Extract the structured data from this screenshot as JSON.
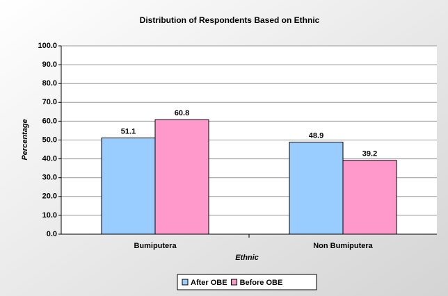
{
  "chart_data": {
    "type": "bar",
    "title": "Distribution of Respondents Based on Ethnic",
    "x_label": "Ethnic",
    "y_label": "Percentage",
    "categories": [
      "Bumiputera",
      "Non Bumiputera"
    ],
    "series": [
      {
        "name": "After OBE",
        "color": "#99ccff",
        "values": [
          51.1,
          48.9
        ]
      },
      {
        "name": "Before OBE",
        "color": "#ff99cc",
        "values": [
          60.8,
          39.2
        ]
      }
    ],
    "ylim": [
      0,
      100
    ],
    "yticks": [
      {
        "value": 0,
        "label": "0.0"
      },
      {
        "value": 10,
        "label": "10.0"
      },
      {
        "value": 20,
        "label": "20.0"
      },
      {
        "value": 30,
        "label": "30.0"
      },
      {
        "value": 40,
        "label": "40.0"
      },
      {
        "value": 50,
        "label": "50.0"
      },
      {
        "value": 60,
        "label": "60.0"
      },
      {
        "value": 70,
        "label": "70.0"
      },
      {
        "value": 80,
        "label": "80.0"
      },
      {
        "value": 90,
        "label": "90.0"
      },
      {
        "value": 100,
        "label": "100.0"
      }
    ],
    "grid": true,
    "legend": "bottom"
  }
}
